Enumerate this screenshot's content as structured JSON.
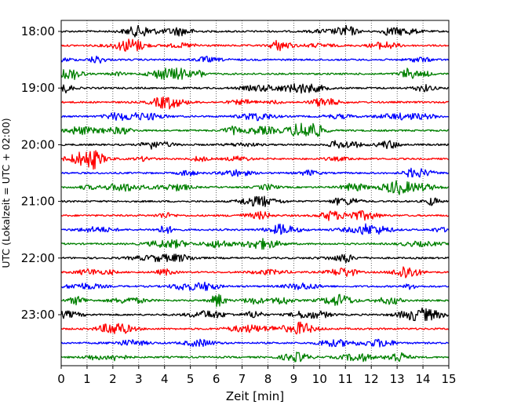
{
  "chart_data": {
    "type": "line",
    "title": "",
    "xlabel": "Zeit  [min]",
    "ylabel": "UTC (Lokalzeit = UTC + 02:00)",
    "xlim": [
      0,
      15
    ],
    "x_ticks": [
      "0",
      "1",
      "2",
      "3",
      "4",
      "5",
      "6",
      "7",
      "8",
      "9",
      "10",
      "11",
      "12",
      "13",
      "14",
      "15"
    ],
    "y_ticks": [
      "18:00",
      "19:00",
      "20:00",
      "21:00",
      "22:00",
      "23:00"
    ],
    "grid": "vertical dotted",
    "trace_interval_minutes": 15,
    "trace_start_times": [
      "18:00",
      "18:15",
      "18:30",
      "18:45",
      "19:00",
      "19:15",
      "19:30",
      "19:45",
      "20:00",
      "20:15",
      "20:30",
      "20:45",
      "21:00",
      "21:15",
      "21:30",
      "21:45",
      "22:00",
      "22:15",
      "22:30",
      "22:45",
      "23:00",
      "23:15",
      "23:30",
      "23:45"
    ],
    "trace_colors": [
      "#000000",
      "#ff0000",
      "#0000ff",
      "#008000"
    ]
  }
}
